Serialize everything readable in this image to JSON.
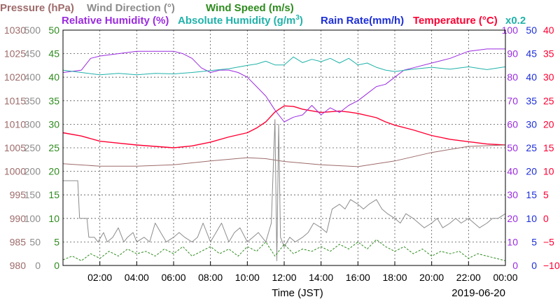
{
  "legend": {
    "pressure": {
      "label": "Pressure (hPa)",
      "color": "#9e6b6b"
    },
    "wind_direction": {
      "label": "Wind Direction (°)",
      "color": "#8c8c8c"
    },
    "wind_speed": {
      "label": "Wind Speed (m/s)",
      "color": "#2e8b1e"
    },
    "relative_humidity": {
      "label": "Relative Humidity (%)",
      "color": "#9a2be0"
    },
    "absolute_humidity": {
      "label": "Absolute Humidity (g/m",
      "sup": "3",
      "suffix": ")",
      "scale_note": "x0.2",
      "color": "#20b2aa"
    },
    "rain_rate": {
      "label": "Rain Rate(mm/h)",
      "color": "#1c2ed8"
    },
    "temperature": {
      "label": "Temperature (°C)",
      "color": "#ff0033"
    }
  },
  "footer": {
    "xlabel": "Time (JST)",
    "date": "2019-06-20"
  },
  "chart_data": {
    "type": "line",
    "x_unit": "hours since 00:00 JST",
    "xlim": [
      0,
      24
    ],
    "x_ticks": [
      "02:00",
      "04:00",
      "06:00",
      "08:00",
      "10:00",
      "12:00",
      "14:00",
      "16:00",
      "18:00",
      "20:00",
      "22:00",
      "00:00"
    ],
    "grid": true,
    "axes": {
      "pressure": {
        "side": "left",
        "ylim": [
          980,
          1030
        ],
        "ticks": [
          "1030",
          "1025",
          "1020",
          "1015",
          "1010",
          "1005",
          "1000",
          "995",
          "990",
          "985",
          "980"
        ]
      },
      "wind_direction": {
        "side": "left",
        "ylim": [
          0,
          500
        ],
        "ticks": [
          "500",
          "450",
          "400",
          "350",
          "300",
          "250",
          "200",
          "150",
          "100",
          "50",
          "0"
        ]
      },
      "wind_speed": {
        "side": "left",
        "ylim": [
          0,
          50
        ],
        "ticks": [
          "50",
          "45",
          "40",
          "35",
          "30",
          "25",
          "20",
          "15",
          "10",
          "5",
          "0"
        ]
      },
      "relative_humidity": {
        "side": "right",
        "ylim": [
          0,
          100
        ],
        "ticks": [
          "100",
          "90",
          "80",
          "70",
          "60",
          "50",
          "40",
          "30",
          "20",
          "10",
          "0"
        ]
      },
      "rain_rate": {
        "side": "right",
        "ylim": [
          0,
          50
        ],
        "ticks": [
          "50",
          "45",
          "40",
          "35",
          "30",
          "25",
          "20",
          "15",
          "10",
          "5",
          "0"
        ]
      },
      "temperature": {
        "side": "right",
        "ylim": [
          -10,
          40
        ],
        "ticks": [
          "40",
          "35",
          "30",
          "25",
          "20",
          "15",
          "10",
          "5",
          "0",
          "−5",
          "−10"
        ]
      }
    },
    "series": [
      {
        "key": "temperature",
        "axis": "temperature",
        "style": "solid",
        "x": [
          0,
          1,
          2,
          3,
          4,
          5,
          6,
          7,
          8,
          9,
          10,
          10.5,
          11,
          11.5,
          12,
          12.5,
          13,
          14,
          15,
          15.5,
          16,
          17,
          17.5,
          18,
          19,
          20,
          21,
          22,
          23,
          24
        ],
        "y": [
          18.2,
          17.5,
          16.4,
          16.0,
          15.6,
          15.3,
          15.0,
          15.4,
          16.2,
          17.3,
          18.2,
          19.2,
          20.5,
          22.6,
          23.9,
          23.8,
          23.2,
          22.5,
          22.8,
          22.6,
          22.3,
          21.4,
          20.5,
          19.8,
          18.8,
          17.6,
          16.8,
          16.3,
          15.8,
          15.6
        ]
      },
      {
        "key": "relative_humidity",
        "axis": "relative_humidity",
        "style": "solid",
        "x": [
          0,
          1,
          1.5,
          2,
          3,
          4,
          5,
          6,
          6.5,
          7,
          7.5,
          8,
          8.5,
          9,
          9.5,
          10,
          10.5,
          11,
          11.5,
          12,
          12.5,
          13,
          13.5,
          14,
          14.5,
          15,
          15.5,
          16,
          16.5,
          17,
          17.5,
          18,
          18.5,
          19,
          20,
          21,
          22,
          23,
          24
        ],
        "y": [
          82,
          83,
          88,
          89,
          90,
          91,
          91,
          91,
          90,
          88,
          84,
          82,
          83,
          83,
          82,
          80,
          76,
          72,
          66,
          61,
          63,
          64,
          68,
          64,
          67,
          65,
          68,
          70,
          73,
          76,
          77,
          80,
          83,
          84,
          86,
          88,
          91,
          92,
          92
        ]
      },
      {
        "key": "absolute_humidity",
        "axis": "pressure",
        "style": "solid",
        "x": [
          0,
          1,
          2,
          3,
          4,
          5,
          6,
          7,
          8,
          9,
          10,
          10.5,
          11,
          11.5,
          12,
          12.5,
          13,
          13.5,
          14,
          14.5,
          15,
          15.5,
          16,
          16.5,
          17,
          17.5,
          18,
          19,
          20,
          21,
          22,
          23,
          24
        ],
        "y": [
          1021.5,
          1021.0,
          1020.5,
          1020.8,
          1020.5,
          1020.8,
          1020.7,
          1021.0,
          1021.4,
          1021.8,
          1022.5,
          1022.8,
          1023.4,
          1022.6,
          1022.6,
          1024.3,
          1023.1,
          1023.8,
          1023.3,
          1024.0,
          1023.0,
          1024.0,
          1022.6,
          1023.0,
          1022.1,
          1021.5,
          1021.2,
          1021.7,
          1022.1,
          1021.7,
          1022.2,
          1021.6,
          1022.2
        ]
      },
      {
        "key": "pressure",
        "axis": "pressure",
        "style": "solid",
        "x": [
          0,
          2,
          4,
          6,
          8,
          10,
          11,
          12,
          14,
          16,
          18,
          20,
          22,
          24
        ],
        "y": [
          1001.6,
          1001.1,
          1001.1,
          1001.4,
          1002.2,
          1002.9,
          1002.7,
          1002.1,
          1001.4,
          1001.0,
          1002.2,
          1004.0,
          1005.3,
          1005.6
        ]
      },
      {
        "key": "wind_direction",
        "axis": "wind_direction",
        "style": "solid",
        "x": [
          0,
          0.8,
          0.9,
          1.3,
          1.4,
          1.7,
          1.9,
          2.2,
          2.4,
          2.7,
          3.0,
          3.3,
          3.5,
          3.8,
          4.0,
          4.4,
          4.7,
          5.0,
          5.3,
          5.6,
          6.0,
          6.3,
          6.6,
          7.0,
          7.3,
          7.6,
          8.0,
          8.3,
          8.6,
          9.0,
          9.3,
          9.6,
          10.0,
          10.3,
          10.6,
          11.0,
          11.3,
          11.5,
          11.6,
          11.7,
          11.8,
          12.0,
          12.3,
          12.6,
          13.0,
          13.3,
          13.6,
          14.0,
          14.3,
          14.6,
          15.0,
          15.3,
          15.6,
          16.0,
          16.3,
          16.6,
          17.0,
          17.3,
          17.6,
          18.0,
          18.3,
          18.6,
          19.0,
          19.3,
          19.6,
          20.0,
          20.3,
          20.6,
          21.0,
          21.3,
          21.6,
          22.0,
          22.3,
          22.6,
          23.0,
          23.3,
          23.6,
          24
        ],
        "y": [
          180,
          180,
          100,
          100,
          60,
          60,
          50,
          70,
          50,
          60,
          80,
          50,
          60,
          70,
          50,
          60,
          50,
          90,
          70,
          50,
          60,
          70,
          60,
          50,
          60,
          90,
          50,
          70,
          90,
          50,
          70,
          80,
          50,
          60,
          70,
          50,
          90,
          310,
          10,
          300,
          60,
          40,
          60,
          50,
          60,
          70,
          90,
          80,
          70,
          120,
          130,
          120,
          140,
          130,
          120,
          130,
          140,
          120,
          110,
          100,
          90,
          110,
          100,
          90,
          80,
          90,
          100,
          80,
          90,
          100,
          90,
          100,
          90,
          80,
          90,
          100,
          100,
          110
        ]
      },
      {
        "key": "wind_speed",
        "axis": "wind_speed",
        "style": "dashed",
        "x": [
          0,
          0.5,
          1,
          1.5,
          2,
          2.5,
          3,
          3.5,
          4,
          4.5,
          5,
          5.5,
          6,
          6.5,
          7,
          7.5,
          8,
          8.5,
          9,
          9.5,
          10,
          10.5,
          11,
          11.5,
          12,
          12.5,
          13,
          13.5,
          14,
          14.5,
          15,
          15.5,
          16,
          16.5,
          17,
          17.5,
          18,
          18.5,
          19,
          19.5,
          20,
          20.5,
          21,
          21.5,
          22,
          22.5,
          23,
          23.5,
          24
        ],
        "y": [
          1.2,
          2.0,
          1.0,
          2.5,
          1.5,
          3.0,
          2.0,
          3.5,
          2.5,
          3.0,
          2.0,
          3.5,
          2.5,
          4.0,
          2.0,
          3.0,
          4.0,
          2.5,
          3.5,
          2.0,
          4.0,
          3.0,
          5.0,
          2.0,
          4.5,
          2.5,
          3.5,
          3.0,
          4.0,
          3.0,
          4.5,
          3.5,
          5.0,
          3.5,
          5.5,
          4.0,
          3.0,
          4.0,
          2.5,
          3.5,
          2.0,
          3.0,
          2.5,
          3.0,
          1.5,
          2.5,
          2.0,
          1.5,
          1.0
        ]
      },
      {
        "key": "rain_rate",
        "axis": "rain_rate",
        "style": "solid",
        "x": [
          0,
          24
        ],
        "y": [
          0,
          0
        ]
      }
    ]
  }
}
